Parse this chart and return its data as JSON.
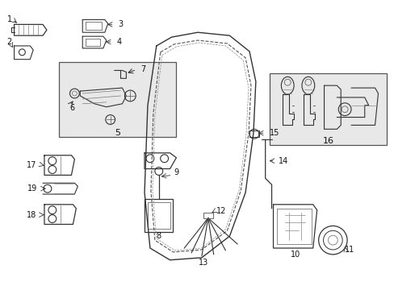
{
  "background_color": "#ffffff",
  "fig_width": 4.89,
  "fig_height": 3.6,
  "dpi": 100,
  "line_color": "#333333",
  "box_fill": "#e8e8e8"
}
